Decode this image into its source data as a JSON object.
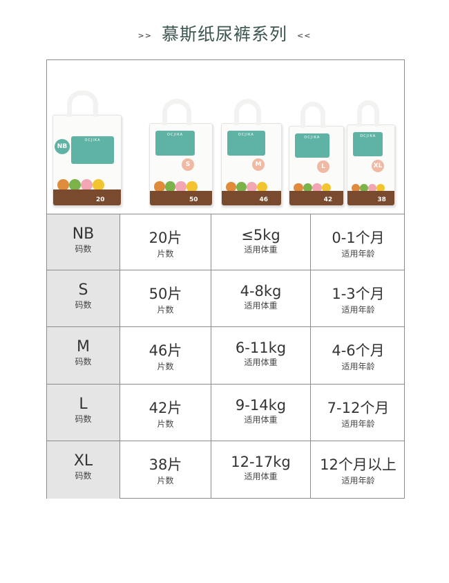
{
  "header": {
    "title": "慕斯纸尿裤系列",
    "left_mark": ">>",
    "right_mark": "<<"
  },
  "products": [
    {
      "size": "NB",
      "count": "20"
    },
    {
      "size": "S",
      "count": "50"
    },
    {
      "size": "M",
      "count": "46"
    },
    {
      "size": "L",
      "count": "42"
    },
    {
      "size": "XL",
      "count": "38"
    }
  ],
  "brand_logo": "OCJIKA",
  "colors": {
    "accent": "#5fb3a5",
    "title": "#3d5551",
    "label_bg": "#e5e5e5"
  },
  "table": {
    "rows": [
      {
        "size": "NB",
        "size_label": "码数",
        "pieces": "20片",
        "pieces_label": "片数",
        "weight": "≤5kg",
        "weight_label": "适用体重",
        "age": "0-1个月",
        "age_label": "适用年龄"
      },
      {
        "size": "S",
        "size_label": "码数",
        "pieces": "50片",
        "pieces_label": "片数",
        "weight": "4-8kg",
        "weight_label": "适用体重",
        "age": "1-3个月",
        "age_label": "适用年龄"
      },
      {
        "size": "M",
        "size_label": "码数",
        "pieces": "46片",
        "pieces_label": "片数",
        "weight": "6-11kg",
        "weight_label": "适用体重",
        "age": "4-6个月",
        "age_label": "适用年龄"
      },
      {
        "size": "L",
        "size_label": "码数",
        "pieces": "42片",
        "pieces_label": "片数",
        "weight": "9-14kg",
        "weight_label": "适用体重",
        "age": "7-12个月",
        "age_label": "适用年龄"
      },
      {
        "size": "XL",
        "size_label": "码数",
        "pieces": "38片",
        "pieces_label": "片数",
        "weight": "12-17kg",
        "weight_label": "适用体重",
        "age": "12个月以上",
        "age_label": "适用年龄"
      }
    ]
  }
}
